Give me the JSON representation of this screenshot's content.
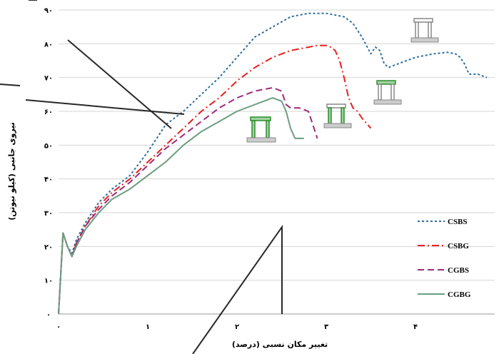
{
  "chart_data": {
    "type": "line",
    "title": "",
    "xlabel": "تغییر مکان نسبی (درصد)",
    "ylabel": "نیروی جانبی (کیلو نیوتن)",
    "xlim": [
      0,
      4.8
    ],
    "ylim": [
      0,
      90
    ],
    "x_ticks": [
      0,
      1,
      2,
      3,
      4
    ],
    "x_tick_labels": [
      "۰",
      "۱",
      "۲",
      "۳",
      "۴"
    ],
    "y_ticks": [
      0,
      10,
      20,
      30,
      40,
      50,
      60,
      70,
      80,
      90
    ],
    "y_tick_labels": [
      "۰",
      "۱۰",
      "۲۰",
      "۳۰",
      "۴۰",
      "۵۰",
      "۶۰",
      "۷۰",
      "۸۰",
      "۹۰"
    ],
    "grid": "horizontal",
    "legend_position": "bottom-right",
    "series": [
      {
        "name": "CSBS",
        "color": "#2e6f9e",
        "dash": "dotted",
        "x": [
          0,
          0.05,
          0.1,
          0.15,
          0.2,
          0.3,
          0.45,
          0.6,
          0.8,
          1.0,
          1.2,
          1.4,
          1.6,
          1.8,
          2.0,
          2.2,
          2.4,
          2.6,
          2.8,
          3.0,
          3.1,
          3.2,
          3.3,
          3.4,
          3.5,
          3.55,
          3.6,
          3.65,
          3.7,
          3.8,
          4.0,
          4.2,
          4.35,
          4.45,
          4.5,
          4.55,
          4.6,
          4.7,
          4.8
        ],
        "y": [
          0,
          24,
          20,
          18,
          22,
          27,
          33,
          37,
          41,
          48,
          56,
          60,
          65,
          70,
          76,
          82,
          85,
          88,
          89,
          89,
          88.5,
          88,
          86,
          82,
          77,
          79,
          78,
          74,
          73,
          74,
          76,
          77,
          77.5,
          77,
          76,
          74,
          71,
          71,
          70
        ]
      },
      {
        "name": "CSBG",
        "color": "#e82020",
        "dash": "dashdot",
        "x": [
          0,
          0.05,
          0.1,
          0.15,
          0.2,
          0.3,
          0.45,
          0.6,
          0.8,
          1.0,
          1.2,
          1.4,
          1.6,
          1.8,
          2.0,
          2.2,
          2.4,
          2.6,
          2.8,
          2.9,
          3.0,
          3.05,
          3.1,
          3.15,
          3.2,
          3.25,
          3.3,
          3.35,
          3.4,
          3.5
        ],
        "y": [
          0,
          24,
          20,
          17,
          21,
          26,
          32,
          36,
          40,
          45,
          50,
          55,
          60,
          64,
          69,
          73,
          76,
          78,
          79,
          79.5,
          79.5,
          79,
          78,
          75,
          70,
          64,
          61,
          60,
          58,
          55
        ]
      },
      {
        "name": "CGBS",
        "color": "#9c2a78",
        "dash": "dashed",
        "x": [
          0,
          0.05,
          0.1,
          0.15,
          0.2,
          0.3,
          0.45,
          0.6,
          0.8,
          1.0,
          1.2,
          1.4,
          1.6,
          1.8,
          2.0,
          2.2,
          2.4,
          2.5,
          2.55,
          2.6,
          2.7,
          2.8,
          2.85,
          2.9
        ],
        "y": [
          0,
          24,
          20,
          17,
          21,
          26,
          31,
          35,
          39,
          44,
          49,
          53,
          57,
          61,
          64,
          66,
          67,
          66,
          62,
          61,
          61,
          60,
          56,
          52
        ]
      },
      {
        "name": "CGBG",
        "color": "#6b9e7f",
        "dash": "solid",
        "x": [
          0,
          0.05,
          0.1,
          0.15,
          0.2,
          0.3,
          0.45,
          0.6,
          0.8,
          1.0,
          1.2,
          1.4,
          1.6,
          1.8,
          2.0,
          2.2,
          2.3,
          2.4,
          2.5,
          2.55,
          2.6,
          2.65,
          2.7,
          2.75
        ],
        "y": [
          0,
          24,
          20,
          17,
          20,
          25,
          30,
          34,
          37,
          41,
          45,
          50,
          54,
          57,
          60,
          62,
          63,
          64,
          63,
          60,
          55,
          52,
          52,
          52
        ]
      }
    ]
  }
}
